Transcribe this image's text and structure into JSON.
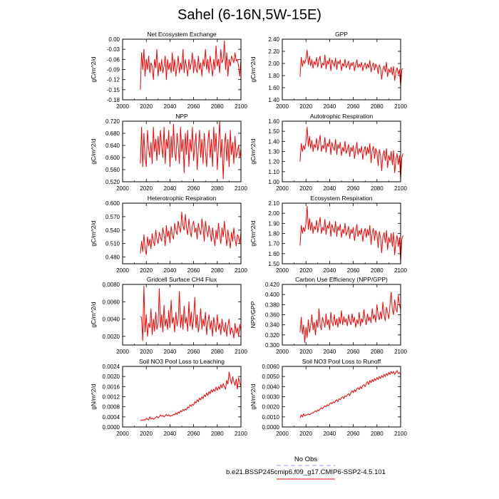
{
  "figure": {
    "title": "Sahel (6-16N,5W-15E)",
    "line_color": "#ff0000",
    "obs_color": "#9999ff"
  },
  "legend": {
    "obs_label": "No Obs",
    "model_label": "b.e21.BSSP245cmip6.f09_g17.CMIP6-SSP2-4.5.101"
  },
  "chart_data": [
    {
      "type": "line",
      "title": "Net Ecosystem Exchange",
      "ylabel": "gC/m^2/d",
      "xlim": [
        2000,
        2100
      ],
      "xticks": [
        "2000",
        "2020",
        "2040",
        "2060",
        "2080",
        "2100"
      ],
      "ylim": [
        -0.18,
        0.0
      ],
      "yticks": [
        "0.00",
        "-0.03",
        "-0.06",
        "-0.09",
        "-0.12",
        "-0.15",
        "-0.18"
      ],
      "x_start": 2015,
      "values": [
        -0.15,
        -0.04,
        -0.09,
        -0.03,
        -0.11,
        -0.06,
        -0.09,
        -0.05,
        -0.1,
        -0.07,
        -0.08,
        -0.12,
        -0.06,
        -0.085,
        -0.03,
        -0.11,
        -0.07,
        -0.095,
        -0.06,
        -0.1,
        -0.08,
        -0.05,
        -0.12,
        -0.06,
        -0.09,
        -0.07,
        -0.1,
        -0.04,
        -0.095,
        -0.06,
        -0.11,
        -0.08,
        -0.05,
        -0.1,
        -0.07,
        -0.09,
        -0.03,
        -0.1,
        -0.06,
        -0.08,
        -0.11,
        -0.06,
        -0.09,
        -0.07,
        -0.04,
        -0.1,
        -0.06,
        -0.085,
        -0.1,
        -0.05,
        -0.09,
        -0.07,
        -0.11,
        -0.06,
        -0.08,
        -0.03,
        -0.09,
        -0.06,
        -0.1,
        -0.05,
        -0.08,
        -0.11,
        -0.06,
        -0.09,
        -0.02,
        -0.08,
        -0.06,
        -0.1,
        -0.03,
        -0.07,
        -0.06,
        -0.005,
        -0.09,
        -0.04,
        -0.11,
        -0.06,
        -0.08,
        -0.05,
        -0.06,
        -0.07,
        -0.04,
        -0.065,
        -0.06,
        -0.08,
        -0.11,
        -0.06
      ]
    },
    {
      "type": "line",
      "title": "GPP",
      "ylabel": "gC/m^2/d",
      "xlim": [
        2000,
        2100
      ],
      "xticks": [
        "2000",
        "2020",
        "2040",
        "2060",
        "2080",
        "2100"
      ],
      "ylim": [
        1.4,
        2.4
      ],
      "yticks": [
        "2.40",
        "2.20",
        "2.00",
        "1.80",
        "1.60",
        "1.40"
      ],
      "x_start": 2015,
      "values": [
        1.78,
        2.1,
        1.95,
        2.05,
        2.0,
        2.08,
        2.22,
        1.98,
        2.12,
        1.96,
        2.06,
        1.92,
        2.03,
        1.98,
        2.1,
        1.94,
        2.06,
        2.12,
        1.92,
        2.01,
        1.97,
        2.14,
        1.91,
        2.04,
        1.99,
        2.09,
        1.88,
        2.06,
        2.0,
        1.95,
        2.09,
        1.9,
        2.04,
        1.99,
        2.06,
        1.88,
        2.0,
        1.95,
        2.07,
        1.93,
        1.98,
        2.04,
        1.9,
        2.01,
        1.96,
        2.02,
        1.88,
        1.97,
        2.06,
        1.93,
        1.99,
        1.94,
        2.02,
        1.88,
        1.96,
        2.01,
        1.91,
        1.99,
        1.93,
        2.05,
        1.86,
        1.96,
        2.01,
        1.89,
        1.99,
        1.95,
        1.83,
        1.98,
        1.92,
        1.74,
        1.9,
        1.96,
        1.86,
        2.02,
        1.78,
        1.91,
        1.85,
        1.94,
        1.81,
        1.95,
        1.72,
        1.86,
        1.93,
        1.82,
        1.9,
        1.62,
        1.9,
        1.92
      ]
    },
    {
      "type": "line",
      "title": "NPP",
      "ylabel": "gC/m^2/d",
      "xlim": [
        2000,
        2100
      ],
      "xticks": [
        "2000",
        "2020",
        "2040",
        "2060",
        "2080",
        "2100"
      ],
      "ylim": [
        0.52,
        0.72
      ],
      "yticks": [
        "0.720",
        "0.680",
        "0.640",
        "0.600",
        "0.560",
        "0.520"
      ],
      "x_start": 2015,
      "values": [
        0.58,
        0.7,
        0.57,
        0.68,
        0.6,
        0.57,
        0.69,
        0.63,
        0.6,
        0.65,
        0.58,
        0.7,
        0.62,
        0.66,
        0.59,
        0.67,
        0.61,
        0.69,
        0.64,
        0.6,
        0.7,
        0.58,
        0.66,
        0.63,
        0.69,
        0.57,
        0.67,
        0.6,
        0.71,
        0.62,
        0.59,
        0.68,
        0.64,
        0.58,
        0.7,
        0.62,
        0.66,
        0.55,
        0.68,
        0.61,
        0.69,
        0.57,
        0.66,
        0.62,
        0.7,
        0.59,
        0.64,
        0.68,
        0.56,
        0.63,
        0.69,
        0.6,
        0.66,
        0.58,
        0.68,
        0.62,
        0.57,
        0.65,
        0.69,
        0.6,
        0.66,
        0.57,
        0.7,
        0.62,
        0.68,
        0.56,
        0.64,
        0.72,
        0.6,
        0.66,
        0.53,
        0.64,
        0.68,
        0.59,
        0.66,
        0.57,
        0.69,
        0.61,
        0.65,
        0.58,
        0.67,
        0.6,
        0.62,
        0.64,
        0.6,
        0.63
      ]
    },
    {
      "type": "line",
      "title": "Autotrophic Respiration",
      "ylabel": "gC/m^2/d",
      "xlim": [
        2000,
        2100
      ],
      "xticks": [
        "2000",
        "2020",
        "2040",
        "2060",
        "2080",
        "2100"
      ],
      "ylim": [
        1.0,
        1.6
      ],
      "yticks": [
        "1.60",
        "1.50",
        "1.40",
        "1.30",
        "1.20",
        "1.10",
        "1.00"
      ],
      "x_start": 2015,
      "values": [
        1.2,
        1.38,
        1.3,
        1.36,
        1.32,
        1.4,
        1.54,
        1.35,
        1.45,
        1.33,
        1.41,
        1.3,
        1.37,
        1.34,
        1.43,
        1.31,
        1.39,
        1.46,
        1.3,
        1.36,
        1.33,
        1.44,
        1.29,
        1.38,
        1.35,
        1.42,
        1.27,
        1.39,
        1.34,
        1.31,
        1.42,
        1.27,
        1.37,
        1.33,
        1.39,
        1.26,
        1.34,
        1.3,
        1.4,
        1.28,
        1.32,
        1.37,
        1.25,
        1.34,
        1.3,
        1.36,
        1.23,
        1.31,
        1.39,
        1.27,
        1.33,
        1.29,
        1.35,
        1.22,
        1.31,
        1.35,
        1.26,
        1.34,
        1.28,
        1.38,
        1.19,
        1.31,
        1.35,
        1.23,
        1.33,
        1.29,
        1.16,
        1.32,
        1.26,
        1.11,
        1.26,
        1.31,
        1.21,
        1.33,
        1.14,
        1.26,
        1.21,
        1.3,
        1.17,
        1.31,
        1.09,
        1.22,
        1.28,
        1.17,
        1.26,
        1.02,
        1.24,
        1.28
      ]
    },
    {
      "type": "line",
      "title": "Heterotrophic Respiration",
      "ylabel": "gC/m^2/d",
      "xlim": [
        2000,
        2100
      ],
      "xticks": [
        "2000",
        "2020",
        "2040",
        "2060",
        "2080",
        "2100"
      ],
      "ylim": [
        0.465,
        0.6
      ],
      "yticks": [
        "0.600",
        "0.570",
        "0.540",
        "0.510",
        "0.480"
      ],
      "x_start": 2015,
      "values": [
        0.488,
        0.515,
        0.492,
        0.53,
        0.5,
        0.485,
        0.525,
        0.505,
        0.52,
        0.498,
        0.532,
        0.515,
        0.505,
        0.54,
        0.52,
        0.51,
        0.535,
        0.525,
        0.515,
        0.545,
        0.53,
        0.505,
        0.55,
        0.525,
        0.538,
        0.512,
        0.548,
        0.53,
        0.52,
        0.555,
        0.54,
        0.53,
        0.56,
        0.545,
        0.535,
        0.58,
        0.55,
        0.54,
        0.575,
        0.545,
        0.53,
        0.565,
        0.54,
        0.525,
        0.55,
        0.56,
        0.535,
        0.545,
        0.52,
        0.555,
        0.54,
        0.53,
        0.565,
        0.545,
        0.515,
        0.56,
        0.54,
        0.525,
        0.55,
        0.535,
        0.515,
        0.545,
        0.525,
        0.505,
        0.54,
        0.52,
        0.555,
        0.53,
        0.51,
        0.545,
        0.525,
        0.56,
        0.53,
        0.505,
        0.54,
        0.52,
        0.5,
        0.535,
        0.515,
        0.545,
        0.52,
        0.505,
        0.53,
        0.525,
        0.51,
        0.535
      ]
    },
    {
      "type": "line",
      "title": "Ecosystem Respiration",
      "ylabel": "gC/m^2/d",
      "xlim": [
        2000,
        2100
      ],
      "xticks": [
        "2000",
        "2020",
        "2040",
        "2060",
        "2080",
        "2100"
      ],
      "ylim": [
        1.5,
        2.1
      ],
      "yticks": [
        "2.10",
        "2.00",
        "1.90",
        "1.80",
        "1.70",
        "1.60",
        "1.50"
      ],
      "x_start": 2015,
      "values": [
        1.68,
        1.88,
        1.8,
        1.86,
        1.82,
        1.9,
        2.07,
        1.84,
        1.95,
        1.83,
        1.91,
        1.8,
        1.87,
        1.84,
        1.93,
        1.81,
        1.89,
        1.96,
        1.8,
        1.86,
        1.83,
        1.94,
        1.79,
        1.88,
        1.85,
        1.92,
        1.77,
        1.89,
        1.84,
        1.81,
        1.92,
        1.77,
        1.87,
        1.83,
        1.89,
        1.76,
        1.84,
        1.8,
        1.9,
        1.78,
        1.82,
        1.87,
        1.75,
        1.84,
        1.8,
        1.86,
        1.73,
        1.81,
        1.89,
        1.77,
        1.83,
        1.79,
        1.85,
        1.72,
        1.81,
        1.85,
        1.76,
        1.84,
        1.78,
        1.88,
        1.69,
        1.81,
        1.85,
        1.73,
        1.83,
        1.79,
        1.66,
        1.82,
        1.76,
        1.61,
        1.76,
        1.81,
        1.71,
        1.83,
        1.64,
        1.76,
        1.71,
        1.8,
        1.67,
        1.81,
        1.59,
        1.72,
        1.78,
        1.67,
        1.76,
        1.52,
        1.74,
        1.78
      ]
    },
    {
      "type": "line",
      "title": "Gridcell Surface CH4 Flux",
      "ylabel": "gC/m^2/d",
      "xlim": [
        2000,
        2100
      ],
      "xticks": [
        "2000",
        "2020",
        "2040",
        "2060",
        "2080",
        "2100"
      ],
      "ylim": [
        0.001,
        0.008
      ],
      "yticks": [
        "0.0080",
        "0.0060",
        "0.0040",
        "0.0020"
      ],
      "x_start": 2015,
      "values": [
        0.0043,
        0.0042,
        0.0015,
        0.0078,
        0.0025,
        0.0045,
        0.002,
        0.0035,
        0.003,
        0.0052,
        0.0022,
        0.004,
        0.0026,
        0.0048,
        0.0028,
        0.0035,
        0.0075,
        0.003,
        0.0045,
        0.0025,
        0.0056,
        0.0032,
        0.004,
        0.0028,
        0.005,
        0.003,
        0.0062,
        0.0035,
        0.0042,
        0.0025,
        0.0048,
        0.0032,
        0.004,
        0.0072,
        0.003,
        0.0045,
        0.0028,
        0.0055,
        0.0035,
        0.0042,
        0.0026,
        0.006,
        0.0032,
        0.0048,
        0.0028,
        0.004,
        0.0065,
        0.003,
        0.0045,
        0.0025,
        0.0035,
        0.0052,
        0.0028,
        0.004,
        0.0032,
        0.0048,
        0.0022,
        0.0036,
        0.0045,
        0.0028,
        0.0038,
        0.002,
        0.0042,
        0.0032,
        0.0025,
        0.0045,
        0.0028,
        0.0035,
        0.0022,
        0.004,
        0.003,
        0.0025,
        0.0036,
        0.002,
        0.0032,
        0.004,
        0.0022,
        0.003,
        0.0026,
        0.0018,
        0.0035,
        0.0024,
        0.003,
        0.002,
        0.0034,
        0.0026
      ]
    },
    {
      "type": "line",
      "title": "Carbon Use Efficiency (NPP/GPP)",
      "ylabel": "NPP/GPP",
      "xlim": [
        2000,
        2100
      ],
      "xticks": [
        "2000",
        "2020",
        "2040",
        "2060",
        "2080",
        "2100"
      ],
      "ylim": [
        0.3,
        0.42
      ],
      "yticks": [
        "0.420",
        "0.400",
        "0.380",
        "0.360",
        "0.340",
        "0.320",
        "0.300"
      ],
      "x_start": 2015,
      "values": [
        0.325,
        0.355,
        0.322,
        0.34,
        0.305,
        0.335,
        0.315,
        0.35,
        0.325,
        0.338,
        0.36,
        0.33,
        0.345,
        0.32,
        0.35,
        0.335,
        0.372,
        0.34,
        0.33,
        0.355,
        0.345,
        0.335,
        0.362,
        0.34,
        0.35,
        0.33,
        0.365,
        0.345,
        0.338,
        0.36,
        0.34,
        0.352,
        0.335,
        0.355,
        0.342,
        0.368,
        0.34,
        0.356,
        0.345,
        0.352,
        0.338,
        0.36,
        0.348,
        0.34,
        0.362,
        0.345,
        0.355,
        0.335,
        0.35,
        0.342,
        0.365,
        0.338,
        0.352,
        0.345,
        0.37,
        0.35,
        0.34,
        0.362,
        0.348,
        0.355,
        0.344,
        0.372,
        0.352,
        0.36,
        0.345,
        0.38,
        0.358,
        0.35,
        0.366,
        0.352,
        0.385,
        0.36,
        0.348,
        0.375,
        0.365,
        0.352,
        0.38,
        0.405,
        0.37,
        0.36,
        0.39,
        0.372,
        0.365,
        0.398,
        0.38,
        0.37
      ]
    },
    {
      "type": "line",
      "title": "Soil NO3 Pool Loss to Leaching",
      "ylabel": "gN/m^2/d",
      "xlim": [
        2000,
        2100
      ],
      "xticks": [
        "2000",
        "2020",
        "2040",
        "2060",
        "2080",
        "2100"
      ],
      "ylim": [
        0.0,
        0.0024
      ],
      "yticks": [
        "0.0024",
        "0.0020",
        "0.0016",
        "0.0012",
        "0.0008",
        "0.0004",
        "0.0000"
      ],
      "x_start": 2015,
      "values": [
        0.00025,
        0.00028,
        0.00026,
        0.0003,
        0.00027,
        0.00035,
        0.0003,
        0.00028,
        0.0004,
        0.00032,
        0.00036,
        0.0003,
        0.00034,
        0.00038,
        0.00042,
        0.00036,
        0.0004,
        0.00048,
        0.00042,
        0.00046,
        0.0004,
        0.00045,
        0.0005,
        0.00044,
        0.00048,
        0.00042,
        0.00046,
        0.00045,
        0.0005,
        0.00048,
        0.00056,
        0.0005,
        0.0006,
        0.00055,
        0.00065,
        0.0006,
        0.0007,
        0.00064,
        0.00072,
        0.00068,
        0.0008,
        0.00076,
        0.00088,
        0.00082,
        0.0009,
        0.00086,
        0.001,
        0.00095,
        0.00108,
        0.001,
        0.00115,
        0.00108,
        0.0012,
        0.00112,
        0.00128,
        0.0012,
        0.00135,
        0.00125,
        0.0014,
        0.00132,
        0.00148,
        0.00138,
        0.0015,
        0.00142,
        0.00158,
        0.00145,
        0.0016,
        0.0015,
        0.00168,
        0.00155,
        0.00172,
        0.0016,
        0.0015,
        0.00185,
        0.0017,
        0.00218,
        0.0019,
        0.0017,
        0.002,
        0.0018,
        0.00165,
        0.0019,
        0.0015,
        0.00195,
        0.00175,
        0.0016
      ]
    },
    {
      "type": "line",
      "title": "Soil NO3 Pool Loss to Runoff",
      "ylabel": "gN/m^2/d",
      "xlim": [
        2000,
        2100
      ],
      "xticks": [
        "2000",
        "2020",
        "2040",
        "2060",
        "2080",
        "2100"
      ],
      "ylim": [
        0.0,
        0.006
      ],
      "yticks": [
        "0.0060",
        "0.0050",
        "0.0040",
        "0.0030",
        "0.0020",
        "0.0010",
        "0.0000"
      ],
      "x_start": 2015,
      "values": [
        0.0009,
        0.0012,
        0.001,
        0.0013,
        0.0011,
        0.0012,
        0.0012,
        0.0013,
        0.0012,
        0.0013,
        0.0014,
        0.0014,
        0.0015,
        0.0016,
        0.0015,
        0.0017,
        0.0016,
        0.0018,
        0.0019,
        0.0018,
        0.002,
        0.0021,
        0.002,
        0.0022,
        0.0021,
        0.0023,
        0.0024,
        0.0023,
        0.0025,
        0.0024,
        0.0026,
        0.0027,
        0.0025,
        0.0028,
        0.0027,
        0.0029,
        0.003,
        0.0028,
        0.0031,
        0.003,
        0.0032,
        0.0033,
        0.0031,
        0.0034,
        0.0036,
        0.0034,
        0.0037,
        0.0035,
        0.0038,
        0.0039,
        0.0037,
        0.004,
        0.0038,
        0.0041,
        0.0042,
        0.004,
        0.0043,
        0.0045,
        0.0042,
        0.0046,
        0.0044,
        0.0047,
        0.0045,
        0.0048,
        0.0046,
        0.0049,
        0.0047,
        0.005,
        0.0048,
        0.0051,
        0.0049,
        0.0052,
        0.005,
        0.0053,
        0.0051,
        0.0054,
        0.0052,
        0.0055,
        0.0053,
        0.0055,
        0.0052,
        0.0054,
        0.0056,
        0.0053,
        0.0054,
        0.0052
      ]
    }
  ]
}
